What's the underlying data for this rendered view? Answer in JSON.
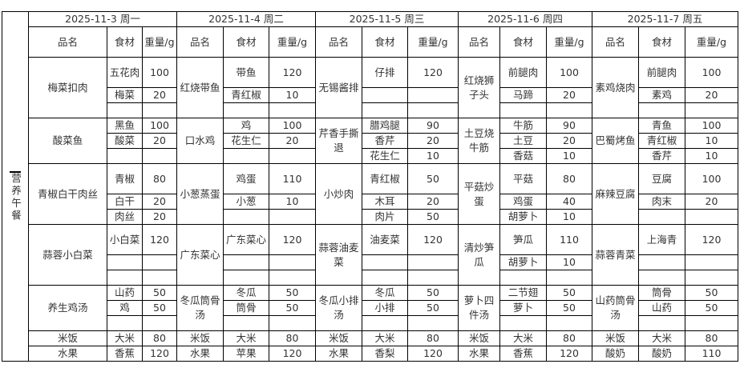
{
  "side_label": "营养午餐",
  "headers": {
    "dish": "品名",
    "ingredient": "食材",
    "weight": "重量/g"
  },
  "days": [
    {
      "date": "2025-11-3 周一",
      "dishes": [
        {
          "name": "梅菜扣肉",
          "items": [
            [
              "五花肉",
              "100"
            ],
            [
              "梅菜",
              "20"
            ],
            [
              "",
              ""
            ]
          ]
        },
        {
          "name": "酸菜鱼",
          "items": [
            [
              "黑鱼",
              "100"
            ],
            [
              "酸菜",
              "20"
            ],
            [
              "",
              ""
            ]
          ]
        },
        {
          "name": "青椒白干肉丝",
          "items": [
            [
              "青椒",
              "80"
            ],
            [
              "白干",
              "20"
            ],
            [
              "肉丝",
              "20"
            ]
          ]
        },
        {
          "name": "蒜蓉小白菜",
          "items": [
            [
              "小白菜",
              "120"
            ],
            [
              "",
              ""
            ],
            [
              "",
              ""
            ]
          ]
        },
        {
          "name": "养生鸡汤",
          "items": [
            [
              "山药",
              "50"
            ],
            [
              "鸡",
              "50"
            ],
            [
              "",
              ""
            ]
          ]
        },
        {
          "name": "米饭",
          "items": [
            [
              "大米",
              "80"
            ]
          ]
        },
        {
          "name": "水果",
          "items": [
            [
              "香蕉",
              "120"
            ]
          ]
        }
      ]
    },
    {
      "date": "2025-11-4 周二",
      "dishes": [
        {
          "name": "红烧带鱼",
          "items": [
            [
              "带鱼",
              "120"
            ],
            [
              "青红椒",
              "10"
            ],
            [
              "",
              ""
            ]
          ]
        },
        {
          "name": "口水鸡",
          "items": [
            [
              "鸡",
              "100"
            ],
            [
              "花生仁",
              "20"
            ],
            [
              "",
              ""
            ]
          ]
        },
        {
          "name": "小葱蒸蛋",
          "items": [
            [
              "鸡蛋",
              "110"
            ],
            [
              "小葱",
              "10"
            ],
            [
              "",
              ""
            ]
          ]
        },
        {
          "name": "广东菜心",
          "items": [
            [
              "广东菜心",
              "120"
            ],
            [
              "",
              ""
            ],
            [
              "",
              ""
            ]
          ]
        },
        {
          "name": "冬瓜筒骨汤",
          "items": [
            [
              "冬瓜",
              "50"
            ],
            [
              "筒骨",
              "50"
            ],
            [
              "",
              ""
            ]
          ]
        },
        {
          "name": "米饭",
          "items": [
            [
              "大米",
              "80"
            ]
          ]
        },
        {
          "name": "水果",
          "items": [
            [
              "苹果",
              "120"
            ]
          ]
        }
      ]
    },
    {
      "date": "2025-11-5 周三",
      "dishes": [
        {
          "name": "无锡酱排",
          "items": [
            [
              "仔排",
              "120"
            ],
            [
              "",
              ""
            ],
            [
              "",
              ""
            ]
          ]
        },
        {
          "name": "芹香手撕退",
          "items": [
            [
              "腊鸡腿",
              "90"
            ],
            [
              "香芹",
              "20"
            ],
            [
              "花生仁",
              "10"
            ]
          ]
        },
        {
          "name": "小炒肉",
          "items": [
            [
              "青红椒",
              "50"
            ],
            [
              "木耳",
              "20"
            ],
            [
              "肉片",
              "50"
            ]
          ]
        },
        {
          "name": "蒜蓉油麦菜",
          "items": [
            [
              "油麦菜",
              "120"
            ],
            [
              "",
              ""
            ],
            [
              "",
              ""
            ]
          ]
        },
        {
          "name": "冬瓜小排汤",
          "items": [
            [
              "冬瓜",
              "50"
            ],
            [
              "小排",
              "50"
            ],
            [
              "",
              ""
            ]
          ]
        },
        {
          "name": "米饭",
          "items": [
            [
              "大米",
              "80"
            ]
          ]
        },
        {
          "name": "水果",
          "items": [
            [
              "香梨",
              "120"
            ]
          ]
        }
      ]
    },
    {
      "date": "2025-11-6 周四",
      "dishes": [
        {
          "name": "红烧狮子头",
          "items": [
            [
              "前腿肉",
              "100"
            ],
            [
              "马蹄",
              "20"
            ],
            [
              "",
              ""
            ]
          ]
        },
        {
          "name": "土豆烧牛筋",
          "items": [
            [
              "牛筋",
              "90"
            ],
            [
              "土豆",
              "20"
            ],
            [
              "香菇",
              "10"
            ]
          ]
        },
        {
          "name": "平菇炒蛋",
          "items": [
            [
              "平菇",
              "80"
            ],
            [
              "鸡蛋",
              "40"
            ],
            [
              "胡萝卜",
              "10"
            ]
          ]
        },
        {
          "name": "清炒笋瓜",
          "items": [
            [
              "笋瓜",
              "110"
            ],
            [
              "胡萝卜",
              "10"
            ],
            [
              "",
              ""
            ]
          ]
        },
        {
          "name": "萝卜四件汤",
          "items": [
            [
              "二节翅",
              "50"
            ],
            [
              "萝卜",
              "50"
            ],
            [
              "",
              ""
            ]
          ]
        },
        {
          "name": "米饭",
          "items": [
            [
              "大米",
              "80"
            ]
          ]
        },
        {
          "name": "水果",
          "items": [
            [
              "香蕉",
              "120"
            ]
          ]
        }
      ]
    },
    {
      "date": "2025-11-7 周五",
      "dishes": [
        {
          "name": "素鸡烧肉",
          "items": [
            [
              "前腿肉",
              "100"
            ],
            [
              "素鸡",
              "20"
            ],
            [
              "",
              ""
            ]
          ]
        },
        {
          "name": "巴蜀烤鱼",
          "items": [
            [
              "青鱼",
              "100"
            ],
            [
              "青红椒",
              "10"
            ],
            [
              "香芹",
              "10"
            ]
          ]
        },
        {
          "name": "麻辣豆腐",
          "items": [
            [
              "豆腐",
              "100"
            ],
            [
              "肉末",
              "20"
            ],
            [
              "",
              ""
            ]
          ]
        },
        {
          "name": "蒜蓉青菜",
          "items": [
            [
              "上海青",
              "120"
            ],
            [
              "",
              ""
            ],
            [
              "",
              ""
            ]
          ]
        },
        {
          "name": "山药筒骨汤",
          "items": [
            [
              "筒骨",
              "50"
            ],
            [
              "山药",
              "50"
            ],
            [
              "",
              ""
            ]
          ]
        },
        {
          "name": "米饭",
          "items": [
            [
              "大米",
              "80"
            ]
          ]
        },
        {
          "name": "酸奶",
          "items": [
            [
              "酸奶",
              "110"
            ]
          ]
        }
      ]
    }
  ]
}
